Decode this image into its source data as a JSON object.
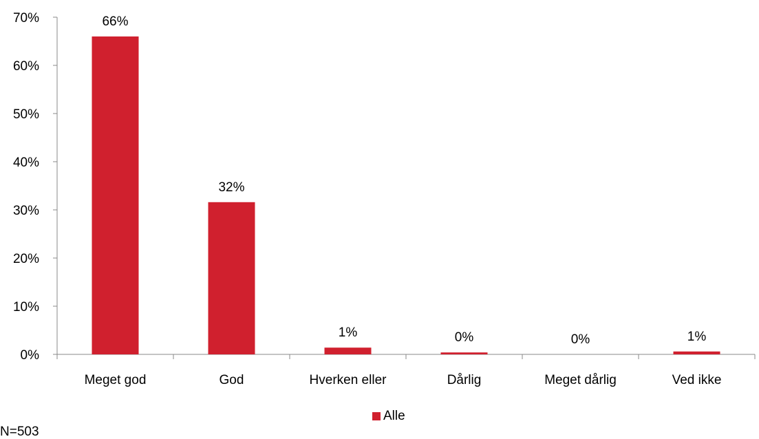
{
  "chart_data": {
    "type": "bar",
    "categories": [
      "Meget god",
      "God",
      "Hverken eller",
      "Dårlig",
      "Meget dårlig",
      "Ved ikke"
    ],
    "series": [
      {
        "name": "Alle",
        "values": [
          66,
          31.6,
          1.4,
          0.4,
          0,
          0.6
        ],
        "color": "#d0202e"
      }
    ],
    "data_labels": [
      "66%",
      "32%",
      "1%",
      "0%",
      "0%",
      "1%"
    ],
    "ylim": [
      0,
      70
    ],
    "yticks": [
      0,
      10,
      20,
      30,
      40,
      50,
      60,
      70
    ],
    "ytick_labels": [
      "0%",
      "10%",
      "20%",
      "30%",
      "40%",
      "50%",
      "60%",
      "70%"
    ],
    "legend_position": "bottom",
    "grid": false
  },
  "legend_label": "Alle",
  "note": "N=503"
}
